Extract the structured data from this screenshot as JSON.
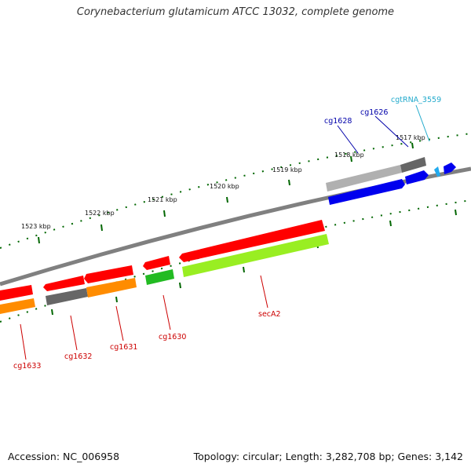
{
  "title": "Corynebacterium glutamicum ATCC 13032, complete genome",
  "footer": {
    "accession": "Accession: NC_006958",
    "stats": "Topology: circular; Length: 3,282,708 bp; Genes: 3,142"
  },
  "colors": {
    "red_gene": "#ff0000",
    "orange_gene": "#ff8c00",
    "gray_gene": "#666666",
    "lightgray_gene": "#b0b0b0",
    "blue_gene": "#0000ee",
    "green_gene": "#22bb22",
    "lightgreen_gene": "#99ee22",
    "cyan_rna": "#22aaee",
    "backbone": "#808080",
    "tick": "#006600",
    "label_red": "#cc0000",
    "label_blue": "#0000aa",
    "label_cyan": "#22aacc"
  },
  "scale": {
    "ticks": [
      "1517 kbp",
      "1518 kbp",
      "1519 kbp",
      "1520 kbp",
      "1521 kbp",
      "1522 kbp",
      "1523 kbp"
    ]
  },
  "labels": {
    "cg1633": "cg1633",
    "cg1632": "cg1632",
    "cg1631": "cg1631",
    "cg1630": "cg1630",
    "secA2": "secA2",
    "cg1628": "cg1628",
    "cg1626": "cg1626",
    "cgtRNA_3559": "cgtRNA_3559"
  }
}
